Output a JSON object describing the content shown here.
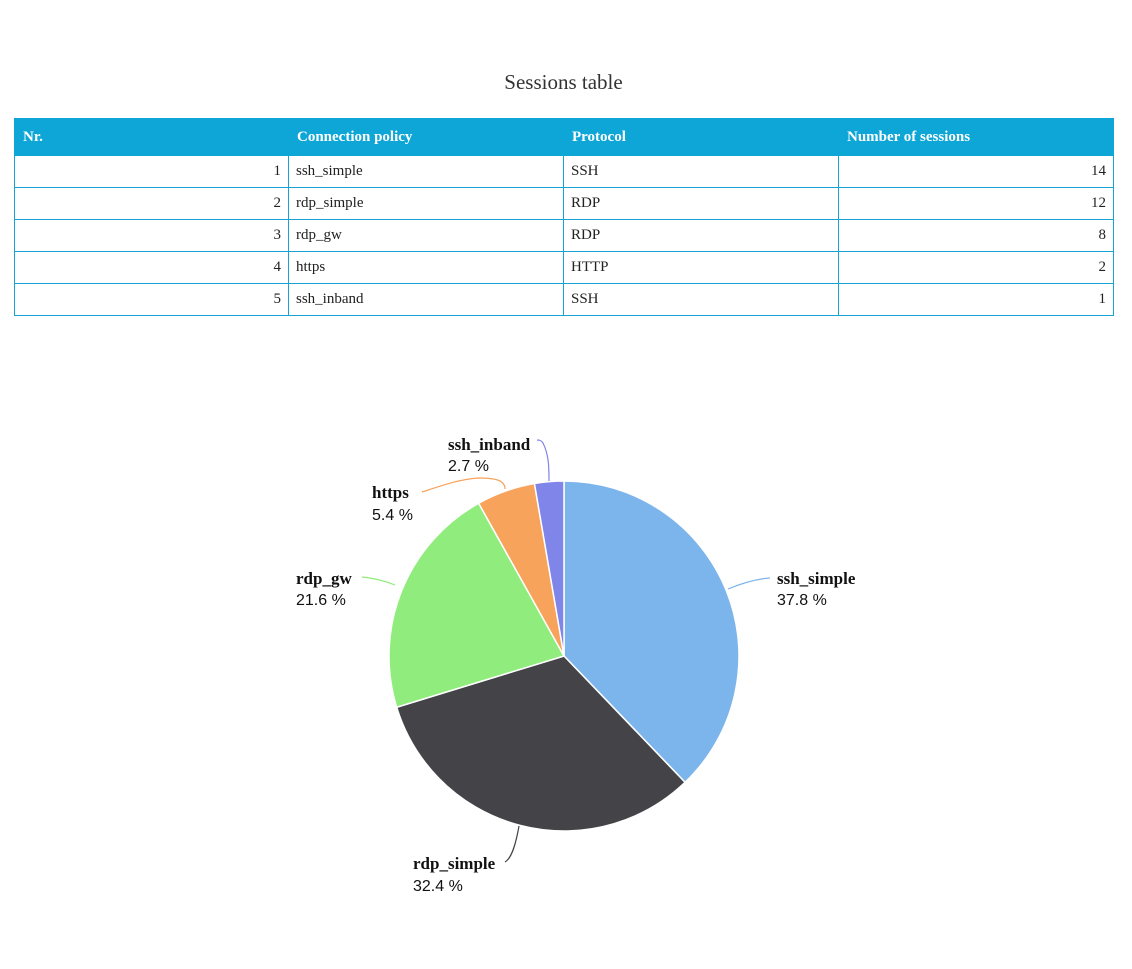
{
  "page": {
    "title": "Sessions table"
  },
  "table": {
    "headers": [
      "Nr.",
      "Connection policy",
      "Protocol",
      "Number of sessions"
    ],
    "rows": [
      [
        "1",
        "ssh_simple",
        "SSH",
        "14"
      ],
      [
        "2",
        "rdp_simple",
        "RDP",
        "12"
      ],
      [
        "3",
        "rdp_gw",
        "RDP",
        "8"
      ],
      [
        "4",
        "https",
        "HTTP",
        "2"
      ],
      [
        "5",
        "ssh_inband",
        "SSH",
        "1"
      ]
    ]
  },
  "chart_data": {
    "type": "pie",
    "categories": [
      "ssh_simple",
      "rdp_simple",
      "rdp_gw",
      "https",
      "ssh_inband"
    ],
    "values": [
      14,
      12,
      8,
      2,
      1
    ],
    "percent_labels": [
      "37.8 %",
      "32.4 %",
      "21.6 %",
      "5.4 %",
      "2.7 %"
    ],
    "colors": [
      "#7cb5ec",
      "#434348",
      "#90ed7d",
      "#f7a35c",
      "#8085e9"
    ],
    "start_angle": "12 o'clock",
    "direction": "clockwise"
  }
}
